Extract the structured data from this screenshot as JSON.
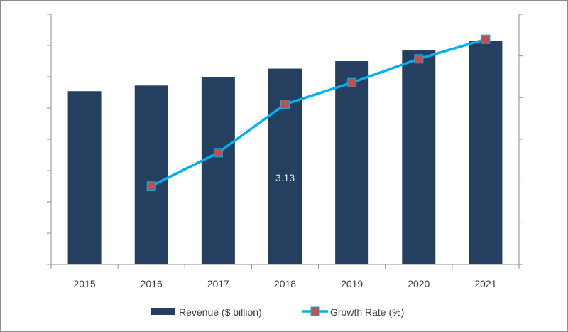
{
  "chart_data": {
    "type": "bar",
    "categories": [
      "2015",
      "2016",
      "2017",
      "2018",
      "2019",
      "2020",
      "2021"
    ],
    "series": [
      {
        "name": "Revenue ($ billion)",
        "kind": "bar",
        "axis": "left",
        "color": "#243f60",
        "values": [
          2.77,
          2.86,
          3.0,
          3.13,
          3.25,
          3.42,
          3.57
        ]
      },
      {
        "name": "Growth Rate (%)",
        "kind": "line",
        "axis": "right",
        "color": "#00b0f0",
        "marker_color": "#c0504d",
        "values": [
          null,
          1.88,
          2.68,
          3.84,
          4.36,
          4.93,
          5.4
        ]
      }
    ],
    "data_labels": [
      {
        "category": "2018",
        "text": "3.13"
      }
    ],
    "left_axis": {
      "ylim": [
        0,
        4
      ],
      "tick_step": 0.5,
      "tick_labels_shown": false
    },
    "right_axis": {
      "ylim": [
        0,
        6
      ],
      "tick_step": 1,
      "tick_labels_shown": false
    },
    "grid": false,
    "legend": "bottom",
    "title": "",
    "xlabel": "",
    "ylabel": ""
  }
}
